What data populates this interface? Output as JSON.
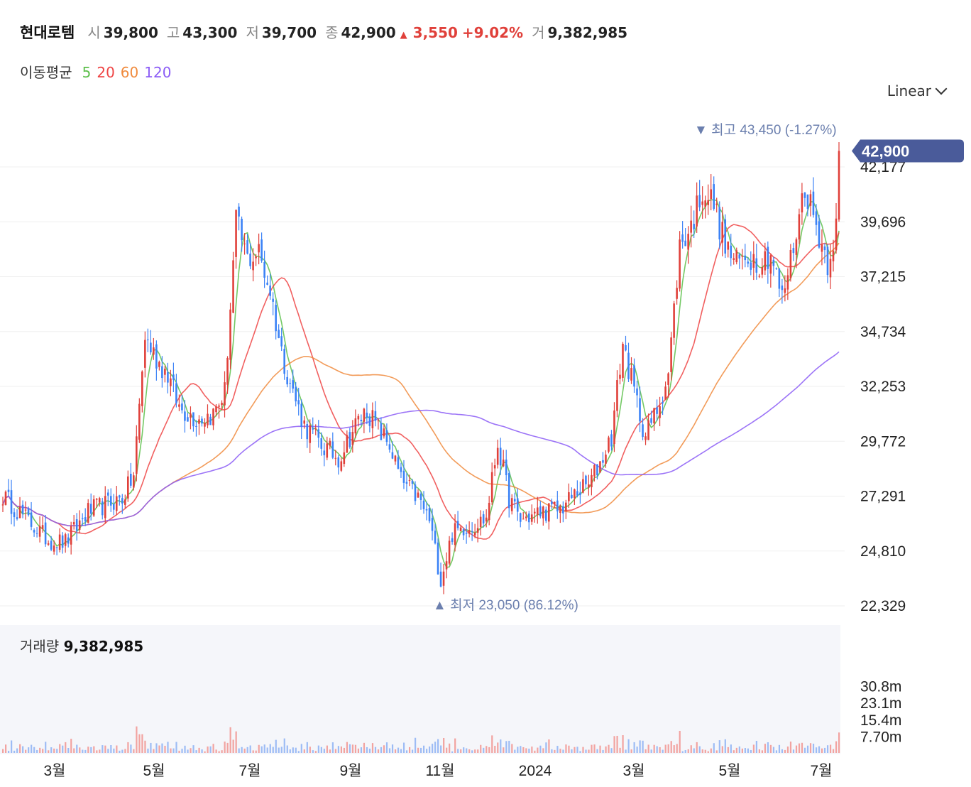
{
  "quote": {
    "name": "현대로템",
    "open_label": "시",
    "open": "39,800",
    "high_label": "고",
    "high": "43,300",
    "low_label": "저",
    "low": "39,700",
    "close_label": "종",
    "close": "42,900",
    "up_arrow": "▲",
    "change": "3,550",
    "change_pct": "+9.02%",
    "volume_label": "거",
    "volume": "9,382,985"
  },
  "ma_legend": {
    "title": "이동평균",
    "items": [
      {
        "label": "5",
        "color": "#5cbf4a"
      },
      {
        "label": "20",
        "color": "#ef4444"
      },
      {
        "label": "60",
        "color": "#f08a3c"
      },
      {
        "label": "120",
        "color": "#8b5cf6"
      }
    ]
  },
  "scale_selector": {
    "value": "Linear",
    "icon": "chevron-down-icon"
  },
  "colors": {
    "up": "#e0403a",
    "down": "#3b82f6",
    "price_tag": "#4a5b9a",
    "annotation": "#6b7fae"
  },
  "chart_data": {
    "type": "candlestick",
    "ylim": [
      22329,
      43450
    ],
    "y_ticks": [
      "42,177",
      "39,696",
      "37,215",
      "34,734",
      "32,253",
      "29,772",
      "27,291",
      "24,810",
      "22,329"
    ],
    "y_tick_values": [
      42177,
      39696,
      37215,
      34734,
      32253,
      29772,
      27291,
      24810,
      22329
    ],
    "x_ticks": [
      "3월",
      "5월",
      "7월",
      "9월",
      "11월",
      "2024",
      "3월",
      "5월",
      "7월"
    ],
    "current_price": "42,900",
    "high_annotation": {
      "label": "▼ 최고",
      "value": "43,450 (-1.27%)",
      "price": 43450
    },
    "low_annotation": {
      "label": "▲ 최저",
      "value": "23,050 (86.12%)",
      "price": 23050
    },
    "close_anchors": [
      [
        0,
        27300
      ],
      [
        8,
        26300
      ],
      [
        16,
        25300
      ],
      [
        22,
        25200
      ],
      [
        30,
        26600
      ],
      [
        38,
        27000
      ],
      [
        42,
        27200
      ],
      [
        46,
        28200
      ],
      [
        50,
        34500
      ],
      [
        54,
        33500
      ],
      [
        58,
        32800
      ],
      [
        62,
        31300
      ],
      [
        68,
        30800
      ],
      [
        74,
        31000
      ],
      [
        78,
        32000
      ],
      [
        82,
        39700
      ],
      [
        86,
        38000
      ],
      [
        90,
        38300
      ],
      [
        94,
        36600
      ],
      [
        98,
        33800
      ],
      [
        102,
        32000
      ],
      [
        106,
        30500
      ],
      [
        112,
        29600
      ],
      [
        118,
        29000
      ],
      [
        124,
        30500
      ],
      [
        128,
        31200
      ],
      [
        132,
        30300
      ],
      [
        136,
        29600
      ],
      [
        140,
        28000
      ],
      [
        146,
        27200
      ],
      [
        150,
        26200
      ],
      [
        154,
        23500
      ],
      [
        158,
        25600
      ],
      [
        162,
        25900
      ],
      [
        166,
        26000
      ],
      [
        170,
        26300
      ],
      [
        174,
        29700
      ],
      [
        178,
        27200
      ],
      [
        182,
        26200
      ],
      [
        186,
        26400
      ],
      [
        190,
        26600
      ],
      [
        196,
        26700
      ],
      [
        202,
        27500
      ],
      [
        206,
        27800
      ],
      [
        210,
        28800
      ],
      [
        214,
        30000
      ],
      [
        218,
        34200
      ],
      [
        222,
        32000
      ],
      [
        226,
        30000
      ],
      [
        230,
        31200
      ],
      [
        234,
        32800
      ],
      [
        238,
        38600
      ],
      [
        242,
        39500
      ],
      [
        246,
        41200
      ],
      [
        250,
        40500
      ],
      [
        254,
        38600
      ],
      [
        258,
        37800
      ],
      [
        262,
        38200
      ],
      [
        266,
        37900
      ],
      [
        270,
        38300
      ],
      [
        274,
        36200
      ],
      [
        278,
        38600
      ],
      [
        282,
        41400
      ],
      [
        286,
        39500
      ],
      [
        290,
        37900
      ],
      [
        293,
        39500
      ],
      [
        294,
        42900
      ]
    ],
    "ma_series": [
      {
        "label": "5",
        "window": 5
      },
      {
        "label": "20",
        "window": 20
      },
      {
        "label": "60",
        "window": 60
      },
      {
        "label": "120",
        "window": 120
      }
    ],
    "volume": {
      "caption": "거래량",
      "value": "9,382,985",
      "y_ticks": [
        "30.8m",
        "23.1m",
        "15.4m",
        "7.70m"
      ],
      "y_tick_values": [
        30.8,
        23.1,
        15.4,
        7.7
      ],
      "ymax": 38.5
    }
  }
}
